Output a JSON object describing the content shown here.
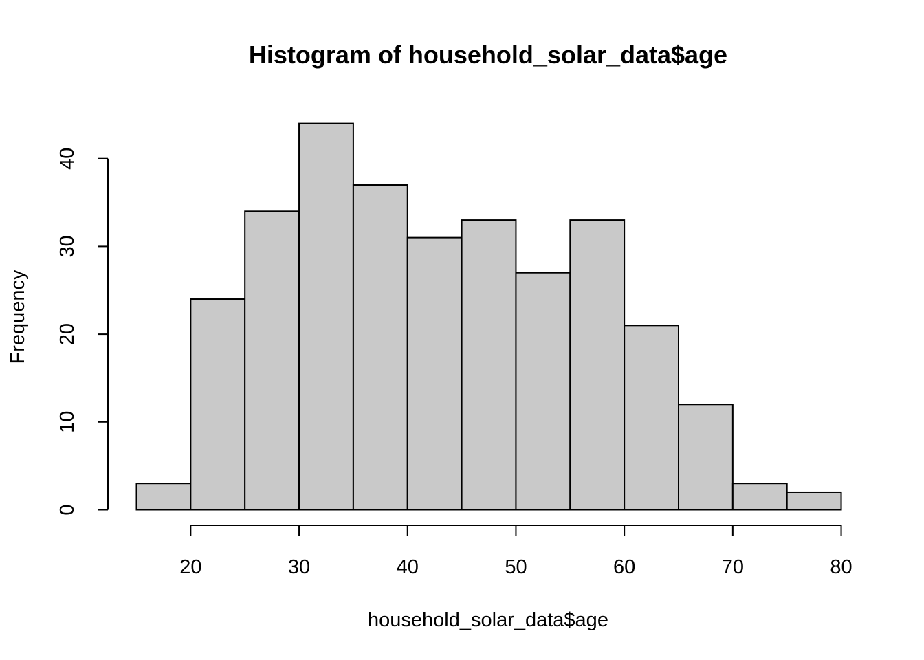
{
  "chart_data": {
    "type": "bar",
    "title": "Histogram of household_solar_data$age",
    "xlabel": "household_solar_data$age",
    "ylabel": "Frequency",
    "bins": [
      {
        "from": 15,
        "to": 20,
        "count": 3
      },
      {
        "from": 20,
        "to": 25,
        "count": 24
      },
      {
        "from": 25,
        "to": 30,
        "count": 34
      },
      {
        "from": 30,
        "to": 35,
        "count": 44
      },
      {
        "from": 35,
        "to": 40,
        "count": 37
      },
      {
        "from": 40,
        "to": 45,
        "count": 31
      },
      {
        "from": 45,
        "to": 50,
        "count": 33
      },
      {
        "from": 50,
        "to": 55,
        "count": 27
      },
      {
        "from": 55,
        "to": 60,
        "count": 33
      },
      {
        "from": 60,
        "to": 65,
        "count": 21
      },
      {
        "from": 65,
        "to": 70,
        "count": 12
      },
      {
        "from": 70,
        "to": 75,
        "count": 3
      },
      {
        "from": 75,
        "to": 80,
        "count": 2
      }
    ],
    "x_ticks": [
      20,
      30,
      40,
      50,
      60,
      70,
      80
    ],
    "y_ticks": [
      0,
      10,
      20,
      30,
      40
    ],
    "xlim": [
      15,
      80
    ],
    "ylim": [
      0,
      44
    ],
    "grid": false,
    "colors": {
      "bar_fill": "#c9c9c9",
      "bar_stroke": "#000000"
    }
  }
}
